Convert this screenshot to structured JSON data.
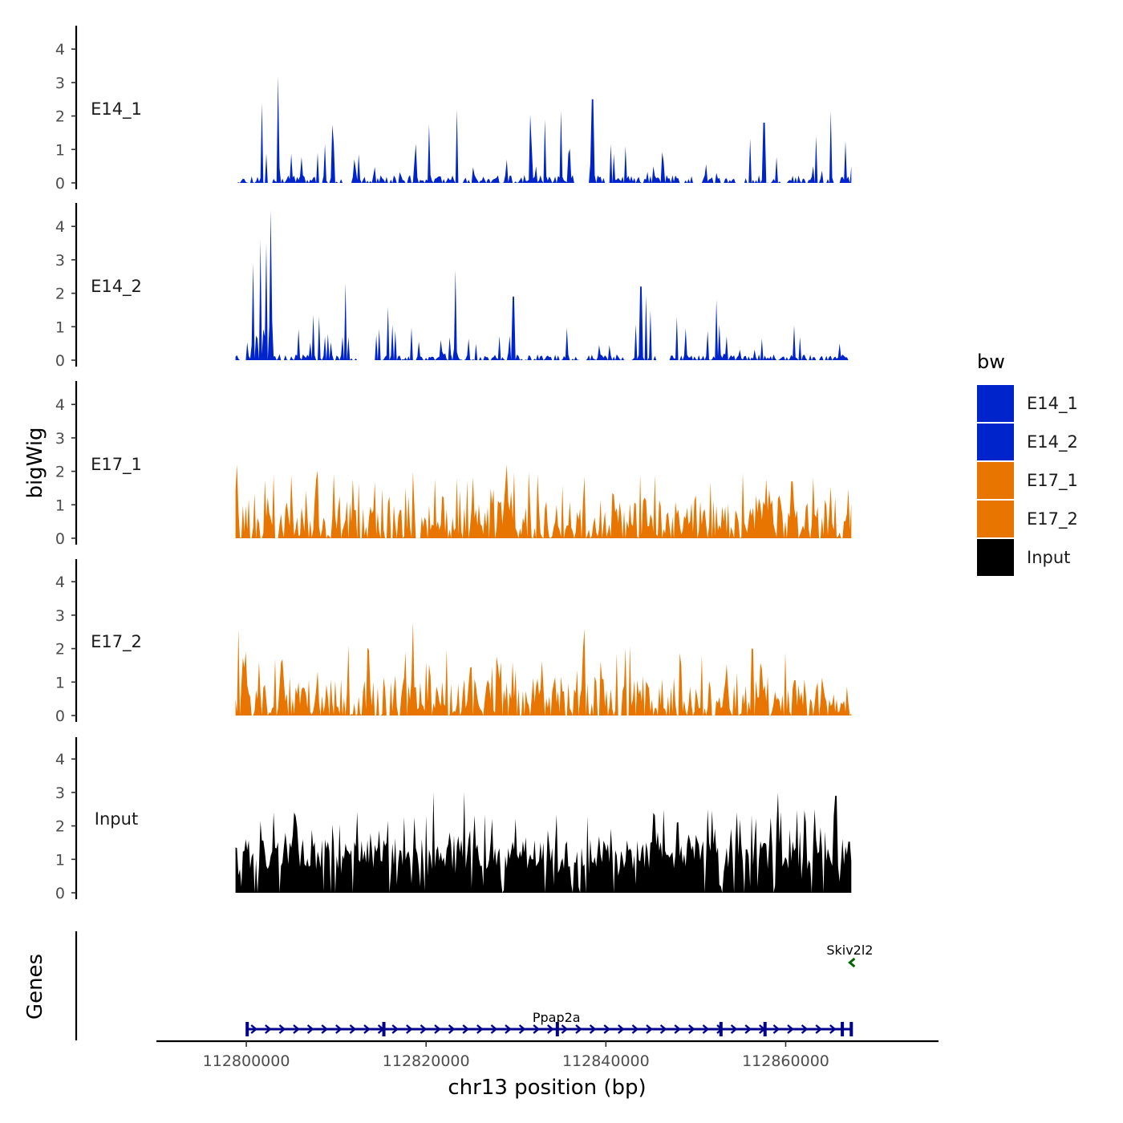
{
  "chart_data": {
    "type": "area",
    "ylabel": "bigWig",
    "xlabel": "chr13 position (bp)",
    "genes_label": "Genes",
    "chromosome": "chr13",
    "xlim": [
      112790000,
      112877000
    ],
    "region": [
      112798800,
      112867300
    ],
    "ylim": [
      0,
      4.6
    ],
    "yticks": [
      "0",
      "1",
      "2",
      "3",
      "4"
    ],
    "xticks": [
      {
        "value": 112800000,
        "label": "112800000"
      },
      {
        "value": 112820000,
        "label": "112820000"
      },
      {
        "value": 112840000,
        "label": "112840000"
      },
      {
        "value": 112860000,
        "label": "112860000"
      }
    ],
    "legend": {
      "title": "bw",
      "entries": [
        {
          "label": "E14_1",
          "color": "#0024CC"
        },
        {
          "label": "E14_2",
          "color": "#0024CC"
        },
        {
          "label": "E17_1",
          "color": "#E87500"
        },
        {
          "label": "E17_2",
          "color": "#E87500"
        },
        {
          "label": "Input",
          "color": "#000000"
        }
      ]
    },
    "series": [
      {
        "name": "E14_1",
        "color": "#0024CC",
        "seed": 11,
        "density": 0.14,
        "base": 0.2,
        "peak_scale": 1.4,
        "highlights": [
          [
            112801800,
            2.4
          ],
          [
            112803500,
            3.2
          ],
          [
            112823400,
            2.2
          ],
          [
            112838500,
            2.5
          ],
          [
            112833200,
            1.9
          ],
          [
            112857600,
            1.8
          ],
          [
            112863400,
            1.4
          ]
        ],
        "gaps": [
          [
            112810800,
            112811800
          ],
          [
            112823600,
            112824200
          ],
          [
            112836500,
            112838000
          ],
          [
            112850000,
            112850800
          ],
          [
            112854400,
            112855400
          ],
          [
            112865200,
            112865800
          ]
        ]
      },
      {
        "name": "E14_2",
        "color": "#0024CC",
        "seed": 23,
        "density": 0.12,
        "base": 0.15,
        "peak_scale": 1.3,
        "highlights": [
          [
            112800800,
            2.9
          ],
          [
            112801600,
            3.6
          ],
          [
            112802200,
            3.5
          ],
          [
            112802700,
            4.5
          ],
          [
            112811000,
            2.3
          ],
          [
            112823200,
            2.7
          ],
          [
            112829700,
            1.9
          ],
          [
            112843900,
            2.2
          ],
          [
            112852300,
            1.8
          ]
        ],
        "gaps": [
          [
            112803800,
            112804200
          ],
          [
            112812400,
            112814400
          ],
          [
            112845600,
            112847000
          ]
        ]
      },
      {
        "name": "E17_1",
        "color": "#E87500",
        "seed": 37,
        "density": 0.55,
        "base": 0.35,
        "peak_scale": 1.2,
        "highlights": [
          [
            112799000,
            2.2
          ],
          [
            112823400,
            1.8
          ],
          [
            112829000,
            2.2
          ],
          [
            112845400,
            1.9
          ],
          [
            112860800,
            1.7
          ]
        ],
        "gaps": []
      },
      {
        "name": "E17_2",
        "color": "#E87500",
        "seed": 53,
        "density": 0.5,
        "base": 0.35,
        "peak_scale": 1.2,
        "highlights": [
          [
            112799100,
            2.6
          ],
          [
            112811300,
            2.1
          ],
          [
            112818500,
            2.8
          ],
          [
            112837600,
            2.6
          ],
          [
            112842700,
            2.1
          ],
          [
            112856300,
            2.0
          ]
        ],
        "gaps": []
      },
      {
        "name": "Input",
        "color": "#000000",
        "seed": 71,
        "density": 0.85,
        "base": 0.7,
        "peak_scale": 1.3,
        "highlights": [
          [
            112803100,
            2.4
          ],
          [
            112820800,
            3.0
          ],
          [
            112824300,
            3.0
          ],
          [
            112851300,
            2.5
          ],
          [
            112859100,
            3.0
          ],
          [
            112865600,
            2.9
          ]
        ],
        "gaps": []
      }
    ],
    "genes": [
      {
        "name": "Ppap2a",
        "start": 112800100,
        "end": 112867300,
        "strand": "+",
        "color": "#00008B",
        "label_position": 112834500,
        "exons": [
          112800100,
          112815300,
          112834600,
          112852800,
          112857700,
          112866300,
          112867300
        ]
      },
      {
        "name": "Skiv2l2",
        "start": 112867400,
        "end": 112867500,
        "strand": "-",
        "color": "#006400",
        "label_position": 112867400,
        "exons": []
      }
    ]
  }
}
